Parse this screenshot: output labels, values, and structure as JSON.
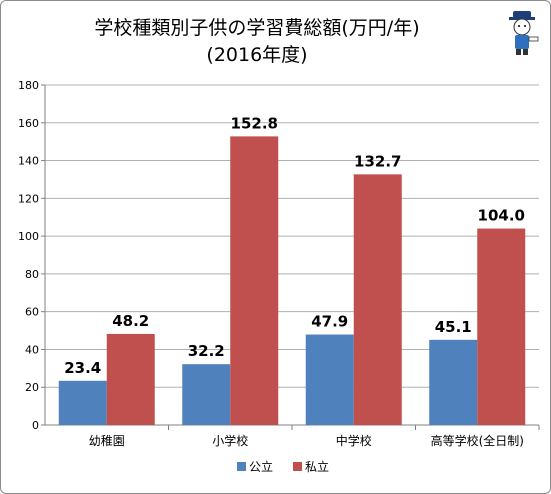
{
  "chart_data": {
    "type": "bar",
    "title": "学校種類別子供の学習費総額(万円/年)",
    "subtitle": "(2016年度)",
    "categories": [
      "幼稚園",
      "小学校",
      "中学校",
      "高等学校(全日制)"
    ],
    "series": [
      {
        "name": "公立",
        "values": [
          23.4,
          32.2,
          47.9,
          45.1
        ],
        "color": "#4f81bd"
      },
      {
        "name": "私立",
        "values": [
          48.2,
          152.8,
          132.7,
          104.0
        ],
        "color": "#c0504d"
      }
    ],
    "data_labels": [
      [
        "23.4",
        "32.2",
        "47.9",
        "45.1"
      ],
      [
        "48.2",
        "152.8",
        "132.7",
        "104.0"
      ]
    ],
    "ylim": [
      0,
      180
    ],
    "yticks": [
      0,
      20,
      40,
      60,
      80,
      100,
      120,
      140,
      160,
      180
    ],
    "grid": true,
    "legend": "bottom",
    "xlabel": "",
    "ylabel": ""
  },
  "mascot_icon": "cat-with-hat-icon"
}
